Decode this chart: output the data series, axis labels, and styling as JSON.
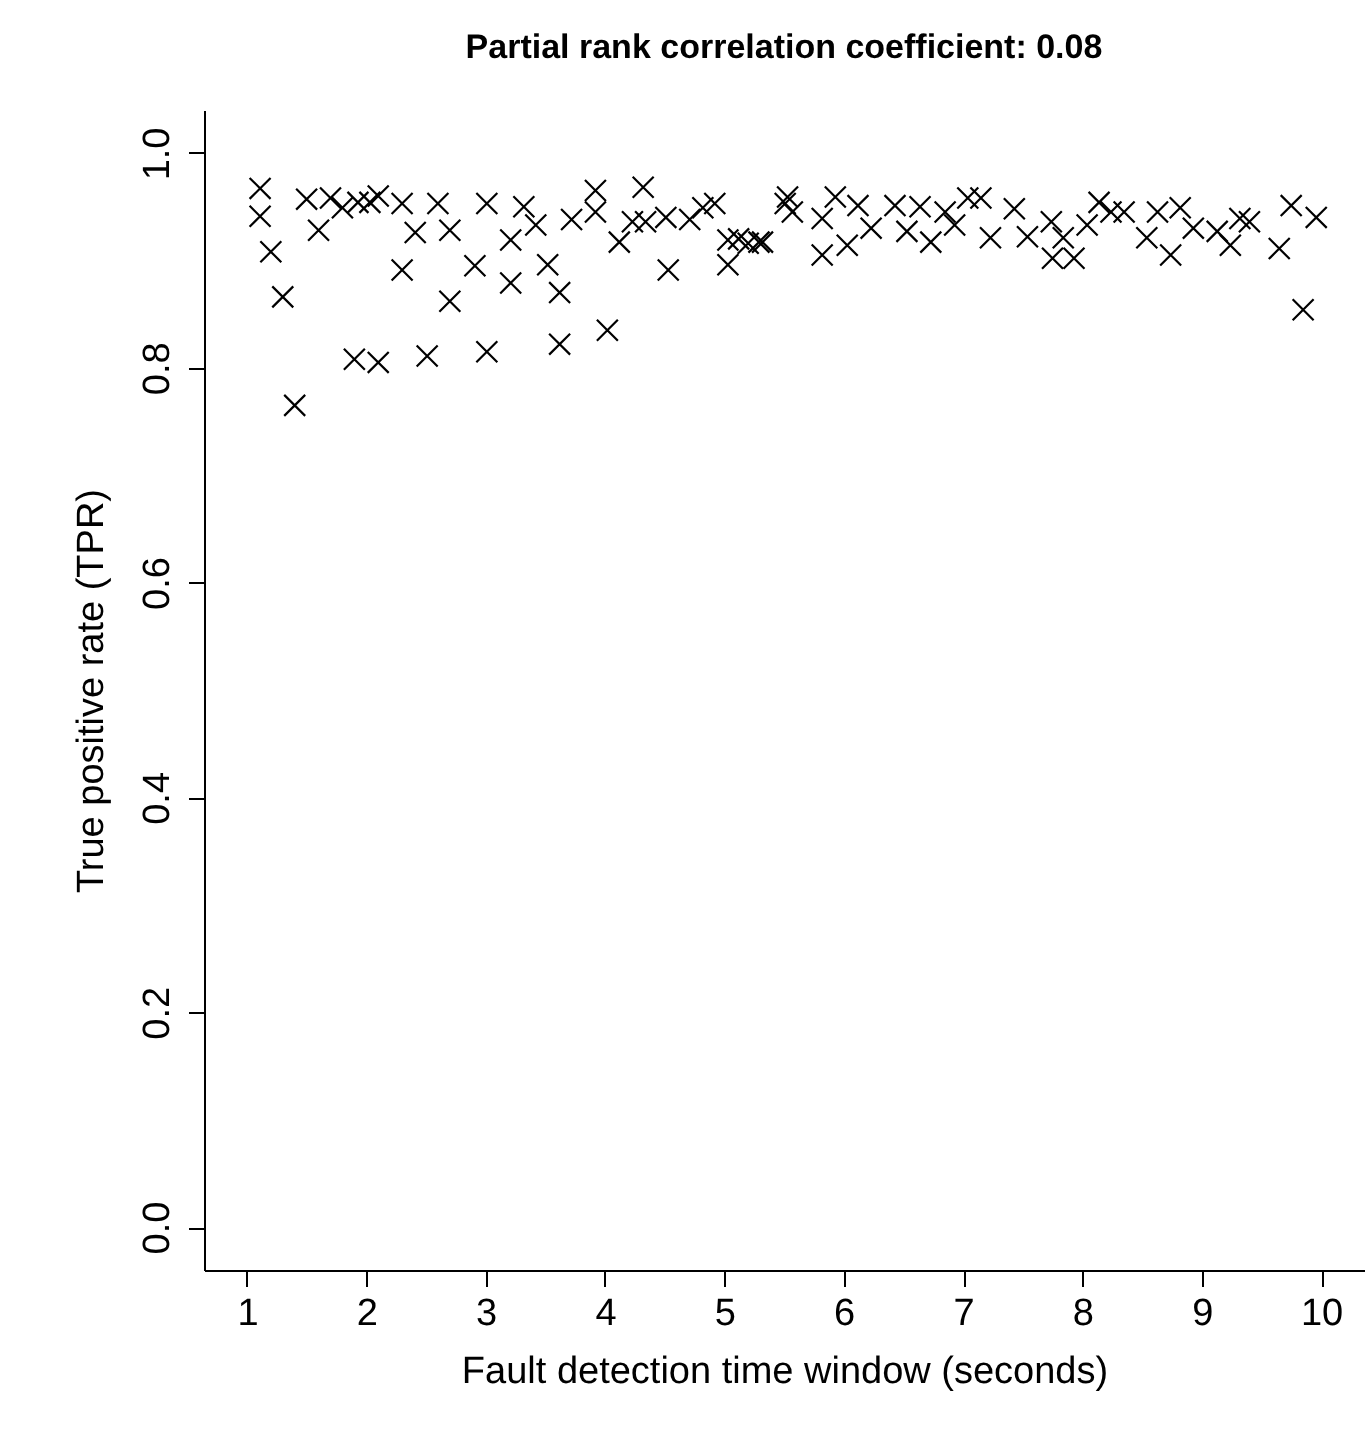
{
  "chart_data": {
    "type": "scatter",
    "title": "Partial rank correlation coefficient: 0.08",
    "xlabel": "Fault detection time window (seconds)",
    "ylabel": "True positive rate (TPR)",
    "x": [
      1.11,
      1.11,
      1.2,
      1.3,
      1.4,
      1.5,
      1.6,
      1.7,
      1.8,
      1.9,
      1.93,
      2.03,
      2.1,
      2.1,
      2.3,
      2.3,
      2.41,
      2.51,
      2.6,
      2.7,
      2.7,
      2.91,
      3.01,
      3.01,
      3.21,
      3.21,
      3.32,
      3.42,
      3.52,
      3.62,
      3.62,
      3.72,
      3.92,
      3.92,
      4.02,
      4.12,
      4.23,
      4.32,
      4.34,
      4.51,
      4.53,
      4.71,
      4.82,
      4.92,
      5.03,
      5.03,
      5.12,
      5.2,
      5.29,
      5.32,
      5.51,
      5.53,
      5.57,
      5.82,
      5.82,
      5.93,
      6.03,
      6.12,
      6.23,
      6.43,
      6.53,
      6.64,
      6.73,
      6.85,
      6.93,
      7.04,
      7.15,
      7.23,
      7.43,
      7.54,
      7.74,
      7.75,
      7.84,
      7.93,
      8.04,
      8.14,
      8.24,
      8.35,
      8.54,
      8.63,
      8.74,
      8.82,
      8.93,
      9.13,
      9.24,
      9.32,
      9.4,
      9.65,
      9.75,
      9.85,
      9.96
    ],
    "values": [
      0.967,
      0.941,
      0.908,
      0.866,
      0.765,
      0.957,
      0.928,
      0.958,
      0.949,
      0.808,
      0.954,
      0.954,
      0.805,
      0.96,
      0.953,
      0.891,
      0.926,
      0.811,
      0.953,
      0.928,
      0.862,
      0.895,
      0.953,
      0.815,
      0.919,
      0.879,
      0.95,
      0.933,
      0.896,
      0.87,
      0.822,
      0.938,
      0.965,
      0.945,
      0.835,
      0.917,
      0.936,
      0.968,
      0.936,
      0.94,
      0.891,
      0.938,
      0.949,
      0.953,
      0.919,
      0.896,
      0.92,
      0.916,
      0.917,
      0.917,
      0.953,
      0.959,
      0.945,
      0.939,
      0.905,
      0.959,
      0.914,
      0.951,
      0.93,
      0.951,
      0.927,
      0.95,
      0.917,
      0.945,
      0.933,
      0.958,
      0.958,
      0.921,
      0.948,
      0.922,
      0.936,
      0.902,
      0.921,
      0.902,
      0.933,
      0.954,
      0.945,
      0.945,
      0.921,
      0.945,
      0.905,
      0.949,
      0.93,
      0.927,
      0.914,
      0.939,
      0.936,
      0.911,
      0.951,
      0.854,
      0.94
    ],
    "color": "#000000",
    "marker": "cross",
    "grid": false,
    "xlim": [
      0.64,
      10.36
    ],
    "xticks": [
      1,
      2,
      3,
      4,
      5,
      6,
      7,
      8,
      9,
      10
    ],
    "ylim": [
      -0.04,
      1.04
    ],
    "yticks": [
      {
        "value": 0,
        "label": "0.0"
      },
      0.2,
      0.4,
      0.6,
      0.8,
      {
        "value": 1,
        "label": "1.0"
      }
    ]
  }
}
